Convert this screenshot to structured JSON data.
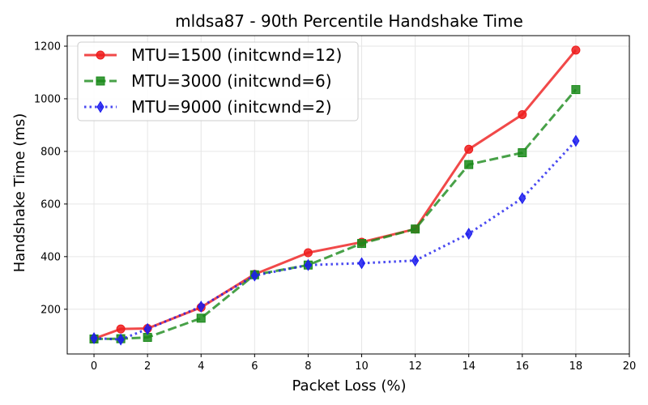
{
  "chart_data": {
    "type": "line",
    "title": "mldsa87 - 90th Percentile Handshake Time",
    "xlabel": "Packet Loss (%)",
    "ylabel": "Handshake Time (ms)",
    "xlim": [
      -1,
      20
    ],
    "ylim": [
      30,
      1240
    ],
    "xticks": [
      0,
      2,
      4,
      6,
      8,
      10,
      12,
      14,
      16,
      18,
      20
    ],
    "yticks": [
      200,
      400,
      600,
      800,
      1000,
      1200
    ],
    "grid": true,
    "legend_position": "top-left",
    "series": [
      {
        "name": "MTU=1500 (initcwnd=12)",
        "color": "#ee1c1c",
        "line_style": "solid",
        "marker": "circle",
        "x": [
          0,
          1,
          2,
          4,
          6,
          8,
          10,
          12,
          14,
          16,
          18
        ],
        "y": [
          88,
          125,
          127,
          207,
          333,
          415,
          455,
          505,
          808,
          940,
          1185
        ]
      },
      {
        "name": "MTU=3000 (initcwnd=6)",
        "color": "#1a8a1a",
        "line_style": "dashed",
        "marker": "square",
        "x": [
          0,
          1,
          2,
          4,
          6,
          8,
          10,
          12,
          14,
          16,
          18
        ],
        "y": [
          87,
          88,
          93,
          166,
          331,
          368,
          450,
          505,
          750,
          795,
          1035
        ]
      },
      {
        "name": "MTU=9000 (initcwnd=2)",
        "color": "#1c1cee",
        "line_style": "dotted",
        "marker": "diamond",
        "x": [
          0,
          1,
          2,
          4,
          6,
          8,
          10,
          12,
          14,
          16,
          18
        ],
        "y": [
          90,
          85,
          125,
          210,
          328,
          368,
          375,
          385,
          487,
          622,
          840
        ]
      }
    ]
  }
}
